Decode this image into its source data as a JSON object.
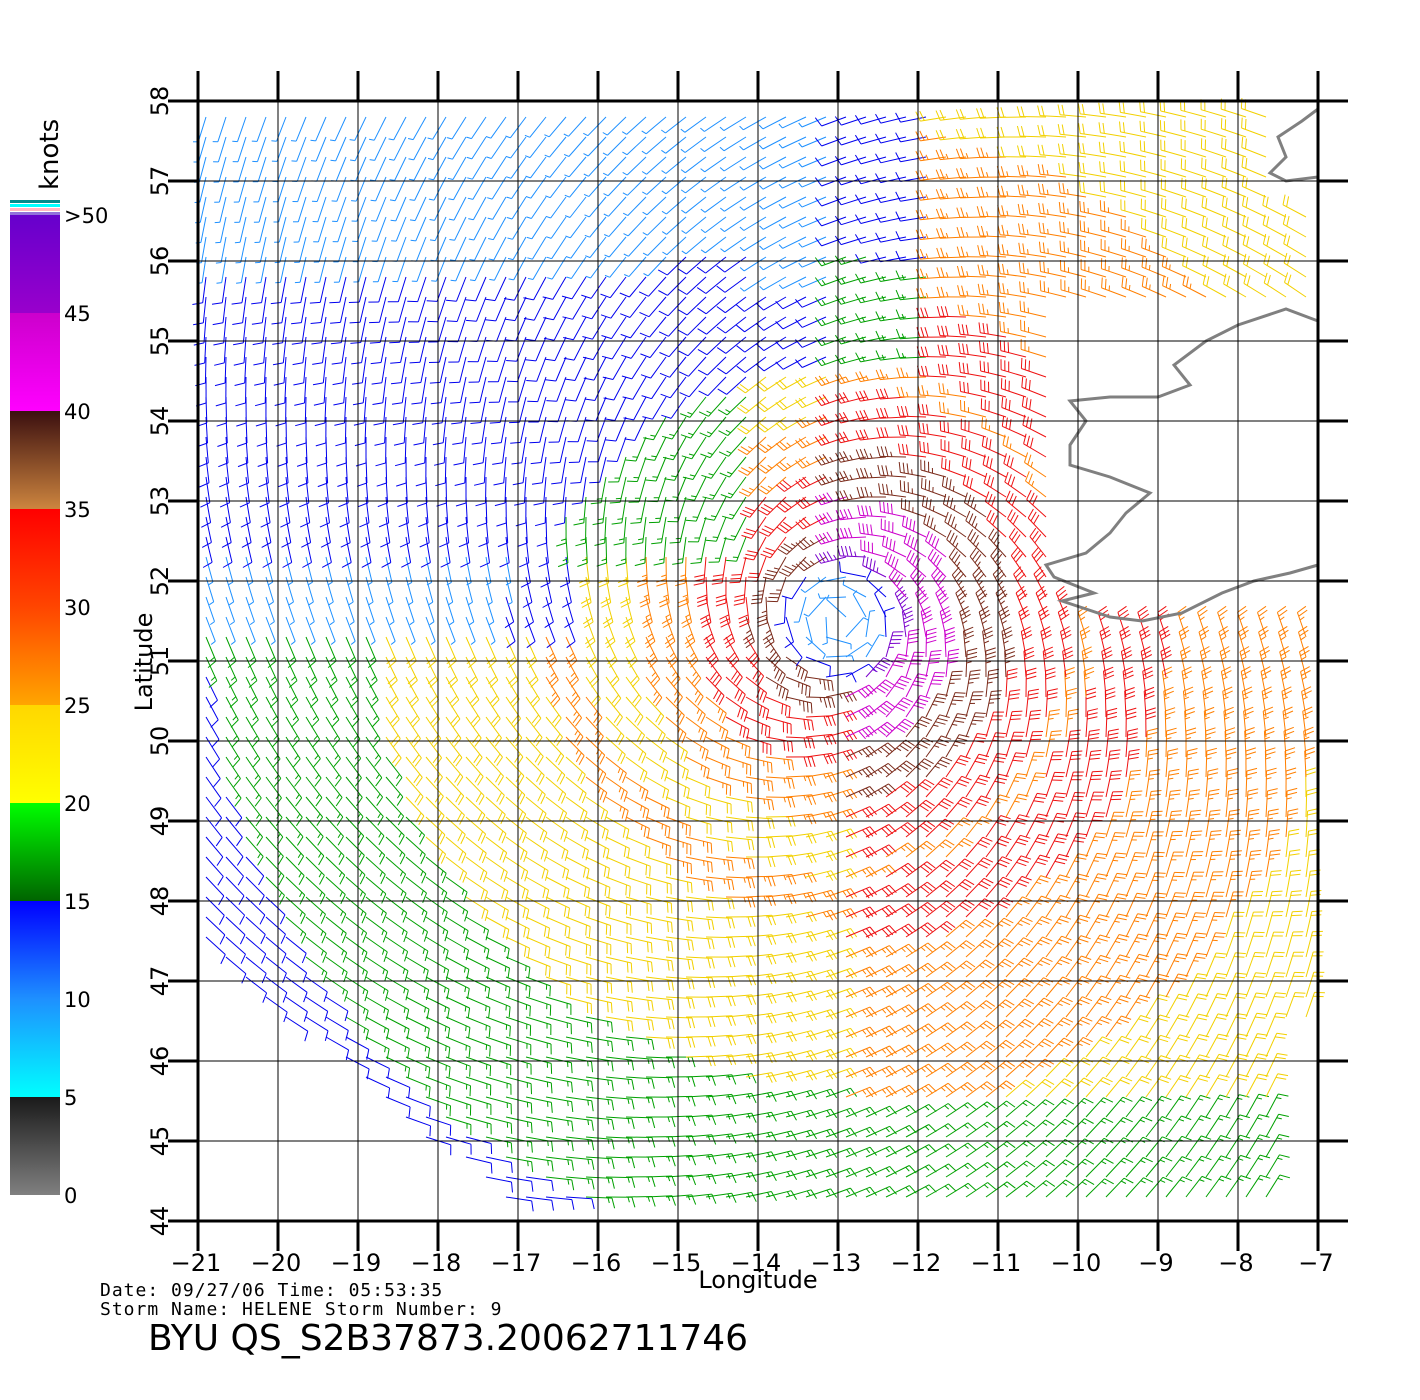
{
  "map": {
    "lon_range": [
      -21,
      -7
    ],
    "lat_range": [
      44,
      58
    ],
    "lon_ticks": [
      "−21",
      "−20",
      "−19",
      "−18",
      "−17",
      "−16",
      "−15",
      "−14",
      "−13",
      "−12",
      "−11",
      "−10",
      "−9",
      "−8",
      "−7"
    ],
    "lat_ticks": [
      "44",
      "45",
      "46",
      "47",
      "48",
      "49",
      "50",
      "51",
      "52",
      "53",
      "54",
      "55",
      "56",
      "57",
      "58"
    ],
    "xlabel": "Longitude",
    "ylabel": "Latitude",
    "grid": true,
    "coastline_color": "#808080",
    "storm_center": {
      "lon": -13,
      "lat": 51.5
    },
    "vectors": "wind barbs colored by speed, cyclonic circulation around storm center"
  },
  "legend": {
    "unit": "knots",
    "labels": [
      "0",
      "5",
      "10",
      "15",
      "20",
      "25",
      "30",
      "35",
      "40",
      "45",
      ">50"
    ],
    "bands": [
      {
        "from": 0,
        "to": 5,
        "colors": [
          "#808080",
          "#1a1a1a"
        ]
      },
      {
        "from": 5,
        "to": 10,
        "colors": [
          "#00ffff",
          "#1e90ff"
        ]
      },
      {
        "from": 10,
        "to": 15,
        "colors": [
          "#1e90ff",
          "#0000ff"
        ]
      },
      {
        "from": 15,
        "to": 20,
        "colors": [
          "#006400",
          "#00ff00"
        ]
      },
      {
        "from": 20,
        "to": 25,
        "colors": [
          "#ffff00",
          "#ffd700"
        ]
      },
      {
        "from": 25,
        "to": 30,
        "colors": [
          "#ffa500",
          "#ff4500"
        ]
      },
      {
        "from": 30,
        "to": 35,
        "colors": [
          "#ff4500",
          "#ff0000"
        ]
      },
      {
        "from": 35,
        "to": 40,
        "colors": [
          "#cd853f",
          "#3b0f0f"
        ]
      },
      {
        "from": 40,
        "to": 45,
        "colors": [
          "#ff00ff",
          "#cc00cc"
        ]
      },
      {
        "from": 45,
        "to": 50,
        "colors": [
          "#9900cc",
          "#6600cc"
        ]
      }
    ]
  },
  "info": {
    "date_line": "Date: 09/27/06   Time: 05:53:35",
    "storm_line": "Storm Name: HELENE   Storm Number: 9",
    "product": "BYU QS_S2B37873.20062711746"
  }
}
